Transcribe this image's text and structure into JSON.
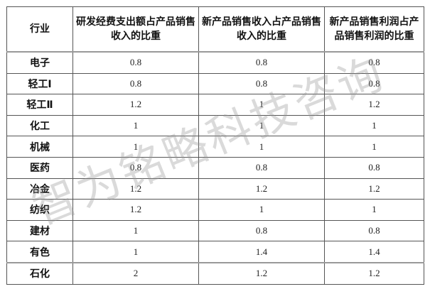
{
  "table": {
    "headers": [
      "行业",
      "研发经费支出额占产品销售收入的比重",
      "新产品销售收入占产品销售收入的比重",
      "新产品销售利润占产品销售利润的比重"
    ],
    "rows": [
      [
        "电子",
        "0.8",
        "0.8",
        "0.8"
      ],
      [
        "轻工Ⅰ",
        "0.8",
        "0.8",
        "0.8"
      ],
      [
        "轻工Ⅱ",
        "1.2",
        "1",
        "1.2"
      ],
      [
        "化工",
        "1",
        "1",
        "1"
      ],
      [
        "机械",
        "1",
        "1",
        "1"
      ],
      [
        "医药",
        "0.8",
        "0.8",
        "0.8"
      ],
      [
        "冶金",
        "1.2",
        "1.2",
        "1.2"
      ],
      [
        "纺织",
        "1.2",
        "1",
        "1"
      ],
      [
        "建材",
        "1",
        "0.8",
        "0.8"
      ],
      [
        "有色",
        "1",
        "1.4",
        "1.4"
      ],
      [
        "石化",
        "2",
        "1.2",
        "1.2"
      ]
    ]
  },
  "watermark": "智为铭略科技咨询"
}
